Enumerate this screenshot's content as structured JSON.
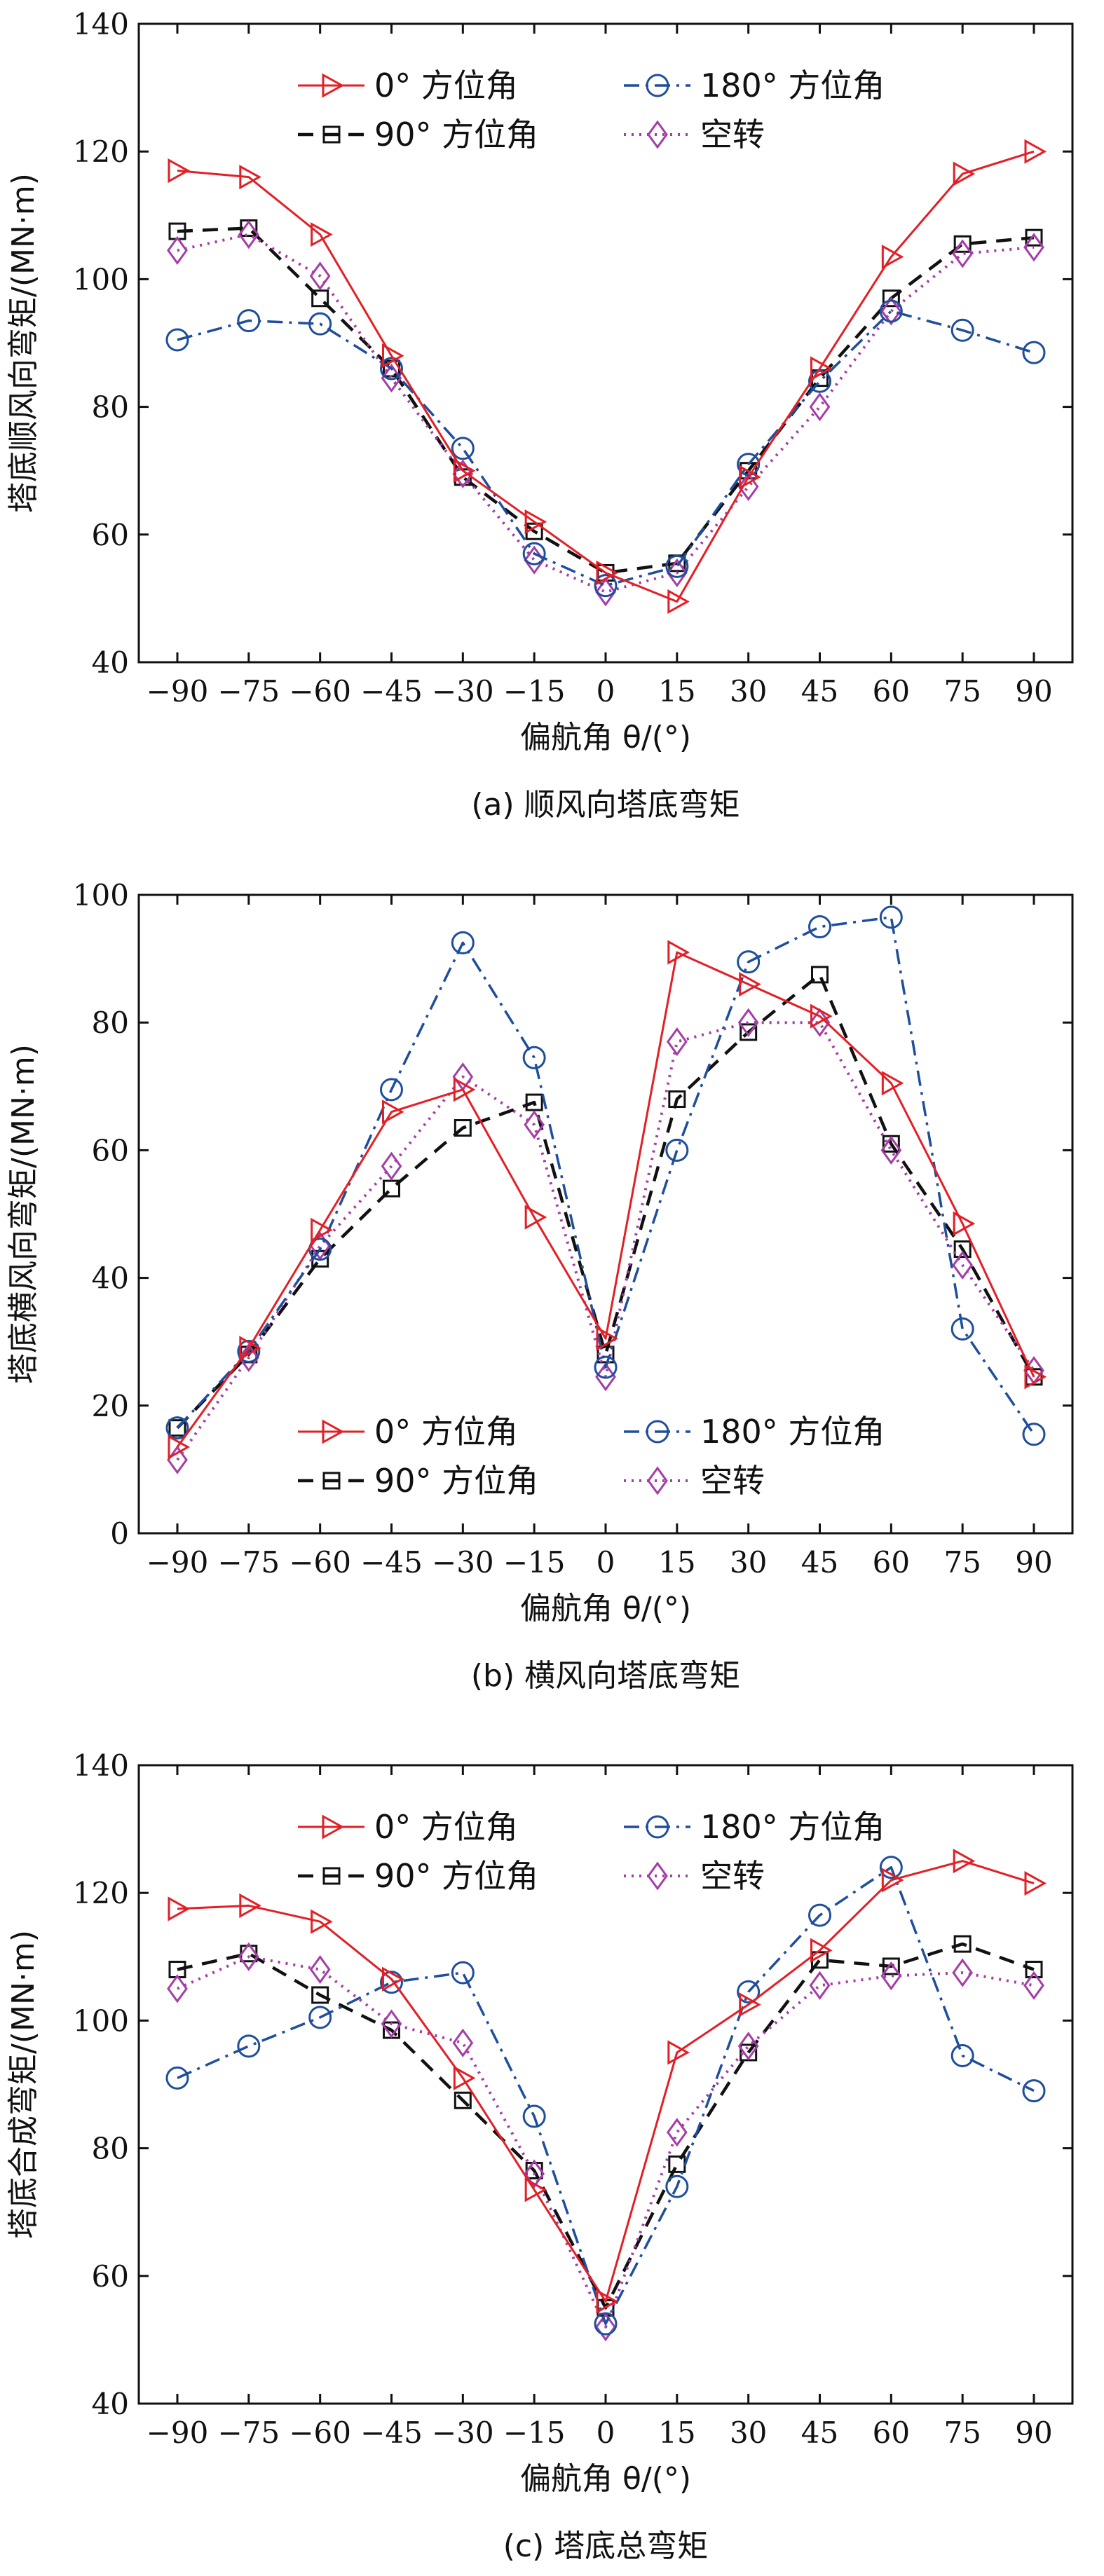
{
  "colors": {
    "az0": "#e31f26",
    "az90": "#111111",
    "az180": "#1f4e9c",
    "idle": "#a43da6"
  },
  "chart_data": [
    {
      "type": "line",
      "caption": "(a) 顺风向塔底弯矩",
      "xlabel": "偏航角 θ/(°)",
      "ylabel": "塔底顺风向弯矩/(MN·m)",
      "ylim": [
        40,
        140
      ],
      "yticks": [
        40,
        60,
        80,
        100,
        120,
        140
      ],
      "x": [
        -90,
        -75,
        -60,
        -45,
        -30,
        -15,
        0,
        15,
        30,
        45,
        60,
        75,
        90
      ],
      "xtick_labels": [
        "−90",
        "−75",
        "−60",
        "−45",
        "−30",
        "−15",
        "0",
        "15",
        "30",
        "45",
        "60",
        "75",
        "90"
      ],
      "legend_position": "top-center",
      "series": [
        {
          "name": "0° 方位角",
          "values": [
            117,
            116,
            107,
            88,
            70,
            62,
            54,
            49.5,
            69,
            86,
            103.5,
            116.5,
            120
          ]
        },
        {
          "name": "180° 方位角",
          "values": [
            90.5,
            93.5,
            93,
            86,
            73.5,
            57,
            52,
            55,
            71,
            84,
            95,
            92,
            88.5
          ]
        },
        {
          "name": "90° 方位角",
          "values": [
            107.5,
            108,
            97,
            86,
            69,
            60.5,
            54,
            55.5,
            70,
            84.5,
            97,
            105.5,
            106.5
          ]
        },
        {
          "name": "空转",
          "values": [
            104.5,
            107,
            100.5,
            84.5,
            69.5,
            56,
            51,
            54,
            67.5,
            80,
            95,
            104,
            105
          ]
        }
      ]
    },
    {
      "type": "line",
      "caption": "(b) 横风向塔底弯矩",
      "xlabel": "偏航角 θ/(°)",
      "ylabel": "塔底横风向弯矩/(MN·m)",
      "ylim": [
        0,
        100
      ],
      "yticks": [
        0,
        20,
        40,
        60,
        80,
        100
      ],
      "x": [
        -90,
        -75,
        -60,
        -45,
        -30,
        -15,
        0,
        15,
        30,
        45,
        60,
        75,
        90
      ],
      "xtick_labels": [
        "−90",
        "−75",
        "−60",
        "−45",
        "−30",
        "−15",
        "0",
        "15",
        "30",
        "45",
        "60",
        "75",
        "90"
      ],
      "legend_position": "bottom-center",
      "series": [
        {
          "name": "0° 方位角",
          "values": [
            13.5,
            29,
            47.5,
            66,
            69.5,
            49.5,
            30.5,
            91,
            86,
            81,
            70.5,
            48.5,
            24.5
          ]
        },
        {
          "name": "180° 方位角",
          "values": [
            16.5,
            28.5,
            44.5,
            69.5,
            92.5,
            74.5,
            26,
            60,
            89.5,
            95,
            96.5,
            32,
            15.5
          ]
        },
        {
          "name": "90° 方位角",
          "values": [
            16.5,
            28,
            43,
            54,
            63.5,
            67.5,
            28,
            68,
            78.5,
            87.5,
            61,
            44.5,
            24.5
          ]
        },
        {
          "name": "空转",
          "values": [
            11.5,
            27.5,
            45,
            57.5,
            71.5,
            64,
            24.5,
            77,
            80,
            80,
            60,
            42,
            25.5
          ]
        }
      ]
    },
    {
      "type": "line",
      "caption": "(c) 塔底总弯矩",
      "xlabel": "偏航角 θ/(°)",
      "ylabel": "塔底合成弯矩/(MN·m)",
      "ylim": [
        40,
        140
      ],
      "yticks": [
        40,
        60,
        80,
        100,
        120,
        140
      ],
      "x": [
        -90,
        -75,
        -60,
        -45,
        -30,
        -15,
        0,
        15,
        30,
        45,
        60,
        75,
        90
      ],
      "xtick_labels": [
        "−90",
        "−75",
        "−60",
        "−45",
        "−30",
        "−15",
        "0",
        "15",
        "30",
        "45",
        "60",
        "75",
        "90"
      ],
      "legend_position": "top-center",
      "series": [
        {
          "name": "0° 方位角",
          "values": [
            117.5,
            118,
            115.5,
            106.5,
            91,
            73.5,
            56,
            95,
            102.5,
            111,
            122,
            125,
            121.5
          ]
        },
        {
          "name": "180° 方位角",
          "values": [
            91,
            96,
            100.5,
            106,
            107.5,
            85,
            52.5,
            74,
            104.5,
            116.5,
            124,
            94.5,
            89
          ]
        },
        {
          "name": "90° 方位角",
          "values": [
            108,
            110.5,
            104,
            98.5,
            87.5,
            76.5,
            55,
            77.5,
            95,
            109.5,
            108.5,
            112,
            108
          ]
        },
        {
          "name": "空转",
          "values": [
            105,
            110,
            108,
            99.5,
            96.5,
            76,
            52,
            82.5,
            96,
            105.5,
            107,
            107.5,
            105.5
          ]
        }
      ]
    }
  ]
}
